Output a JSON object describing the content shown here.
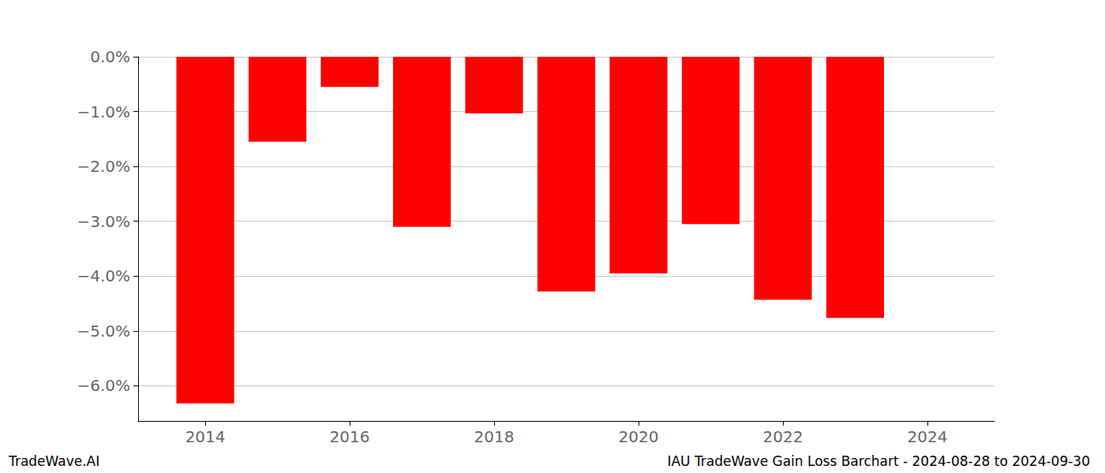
{
  "chart_data": {
    "type": "bar",
    "title": "IAU TradeWave Gain Loss Barchart - 2024-08-28 to 2024-09-30",
    "annotations": [
      "TradeWave.AI"
    ],
    "x": [
      2014,
      2015,
      2016,
      2017,
      2018,
      2019,
      2020,
      2021,
      2022,
      2023
    ],
    "values": [
      -6.32,
      -1.55,
      -0.55,
      -3.1,
      -1.03,
      -4.28,
      -3.95,
      -3.05,
      -4.43,
      -4.76
    ],
    "color": "#ff0000",
    "xlim": [
      2013.07,
      2024.93
    ],
    "xticks": [
      2014,
      2016,
      2018,
      2020,
      2022,
      2024
    ],
    "ylim": [
      -6.64,
      0
    ],
    "yticks": [
      {
        "value": 0,
        "label": "0.0%"
      },
      {
        "value": -1,
        "label": "−1.0%"
      },
      {
        "value": -2,
        "label": "−2.0%"
      },
      {
        "value": -3,
        "label": "−3.0%"
      },
      {
        "value": -4,
        "label": "−4.0%"
      },
      {
        "value": -5,
        "label": "−5.0%"
      },
      {
        "value": -6,
        "label": "−6.0%"
      }
    ],
    "grid": true
  }
}
